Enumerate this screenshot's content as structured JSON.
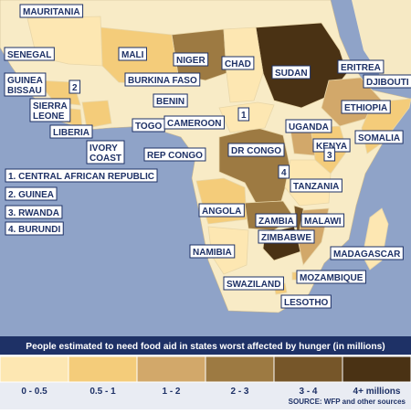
{
  "map_labels": [
    [
      "MAURITANIA"
    ],
    [
      "SENEGAL"
    ],
    [
      "GUINEA",
      "BISSAU"
    ],
    [
      "2"
    ],
    [
      "SIERRA",
      "LEONE"
    ],
    [
      "LIBERIA"
    ],
    [
      "IVORY",
      "COAST"
    ],
    [
      "MALI"
    ],
    [
      "NIGER"
    ],
    [
      "CHAD"
    ],
    [
      "BURKINA FASO"
    ],
    [
      "BENIN"
    ],
    [
      "TOGO"
    ],
    [
      "CAMEROON"
    ],
    [
      "1"
    ],
    [
      "SUDAN"
    ],
    [
      "ERITREA"
    ],
    [
      "DJIBOUTI"
    ],
    [
      "ETHIOPIA"
    ],
    [
      "UGANDA"
    ],
    [
      "SOMALIA"
    ],
    [
      "KENYA"
    ],
    [
      "3"
    ],
    [
      "REP CONGO"
    ],
    [
      "DR CONGO"
    ],
    [
      "4"
    ],
    [
      "TANZANIA"
    ],
    [
      "ANGOLA"
    ],
    [
      "ZAMBIA"
    ],
    [
      "MALAWI"
    ],
    [
      "ZIMBABWE"
    ],
    [
      "NAMIBIA"
    ],
    [
      "MADAGASCAR"
    ],
    [
      "MOZAMBIQUE"
    ],
    [
      "SWAZILAND"
    ],
    [
      "LESOTHO"
    ]
  ],
  "key": [
    "1. CENTRAL AFRICAN REPUBLIC",
    "2. GUINEA",
    "3. RWANDA",
    "4. BURUNDI"
  ],
  "legend": {
    "title": "People estimated to need food aid in states worst affected by hunger (in millions)",
    "items": [
      {
        "label": "0 - 0.5",
        "color": "#fde7b2"
      },
      {
        "label": "0.5 - 1",
        "color": "#f4cc7a"
      },
      {
        "label": "1 - 2",
        "color": "#d2a86a"
      },
      {
        "label": "2 - 3",
        "color": "#9d7a42"
      },
      {
        "label": "3 - 4",
        "color": "#765629"
      },
      {
        "label": "4+ millions",
        "color": "#4a3214"
      }
    ]
  },
  "source": "SOURCE: WFP and other sources"
}
